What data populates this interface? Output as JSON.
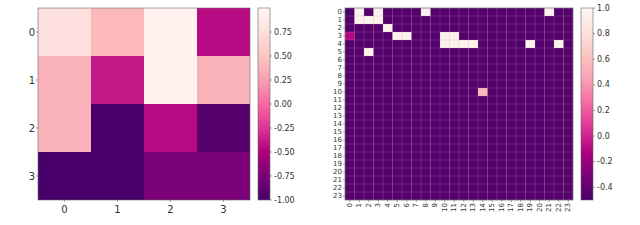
{
  "chart_data": [
    {
      "type": "heatmap",
      "x": [
        0,
        1,
        2,
        3
      ],
      "y": [
        0,
        1,
        2,
        3
      ],
      "values": [
        [
          0.75,
          0.42,
          0.95,
          -0.45
        ],
        [
          0.38,
          -0.38,
          0.95,
          0.38
        ],
        [
          0.38,
          -1.0,
          -0.45,
          -0.95
        ],
        [
          -1.0,
          -1.0,
          -0.75,
          -0.75
        ]
      ],
      "colorbar_lim": [
        -1.0,
        1.0
      ],
      "colorbar_ticks": [
        0.75,
        {
          "value": 0.5,
          "label": "0.50"
        },
        0.25,
        {
          "value": 0,
          "label": "0.00"
        },
        -0.25,
        {
          "value": -0.5,
          "label": "-0.50"
        },
        -0.75,
        {
          "value": -1,
          "label": "-1.00"
        }
      ],
      "grid": false
    },
    {
      "type": "heatmap",
      "x": [
        0,
        1,
        2,
        3,
        4,
        5,
        6,
        7,
        8,
        9,
        10,
        11,
        12,
        13,
        14,
        15,
        16,
        17,
        18,
        19,
        20,
        21,
        22,
        23
      ],
      "y": [
        0,
        1,
        2,
        3,
        4,
        5,
        6,
        7,
        8,
        9,
        10,
        11,
        12,
        13,
        14,
        15,
        16,
        17,
        18,
        19,
        20,
        21,
        22,
        23
      ],
      "values": [
        [
          -0.48,
          0.95,
          -0.45,
          0.95,
          -0.45,
          -0.45,
          -0.45,
          -0.45,
          0.95,
          -0.45,
          -0.45,
          -0.45,
          -0.45,
          -0.45,
          -0.45,
          -0.45,
          -0.45,
          -0.45,
          -0.45,
          -0.45,
          -0.45,
          0.95,
          -0.45,
          -0.45
        ],
        [
          -0.45,
          0.95,
          0.95,
          0.95,
          -0.45,
          -0.45,
          -0.45,
          -0.45,
          -0.45,
          -0.45,
          -0.45,
          -0.45,
          -0.45,
          -0.45,
          -0.45,
          -0.45,
          -0.45,
          -0.45,
          -0.45,
          -0.45,
          -0.45,
          -0.45,
          -0.45,
          -0.45
        ],
        [
          -0.45,
          -0.45,
          -0.45,
          -0.45,
          0.95,
          -0.45,
          -0.45,
          -0.45,
          -0.45,
          -0.45,
          -0.45,
          -0.45,
          -0.45,
          -0.45,
          -0.45,
          -0.45,
          -0.45,
          -0.45,
          -0.45,
          -0.45,
          -0.45,
          -0.45,
          -0.45,
          -0.45
        ],
        [
          -0.1,
          -0.45,
          -0.45,
          -0.45,
          -0.45,
          0.95,
          0.95,
          -0.45,
          -0.45,
          -0.45,
          0.95,
          0.95,
          -0.45,
          -0.45,
          -0.45,
          -0.45,
          -0.45,
          -0.45,
          -0.45,
          -0.45,
          -0.45,
          -0.45,
          -0.45,
          -0.45
        ],
        [
          -0.45,
          -0.45,
          -0.45,
          -0.45,
          -0.45,
          -0.45,
          -0.45,
          -0.45,
          -0.45,
          -0.45,
          0.95,
          0.95,
          0.95,
          0.95,
          -0.45,
          -0.45,
          -0.45,
          -0.45,
          -0.48,
          0.95,
          -0.45,
          -0.45,
          0.95,
          -0.45
        ],
        [
          -0.45,
          -0.45,
          0.95,
          -0.45,
          -0.45,
          -0.45,
          -0.45,
          -0.45,
          -0.45,
          -0.45,
          -0.45,
          -0.45,
          -0.45,
          -0.45,
          -0.45,
          -0.45,
          -0.45,
          -0.45,
          -0.45,
          -0.45,
          -0.45,
          -0.45,
          -0.45,
          -0.45
        ],
        [
          -0.45,
          -0.45,
          -0.45,
          -0.45,
          -0.45,
          -0.45,
          -0.45,
          -0.45,
          -0.45,
          -0.45,
          -0.45,
          -0.45,
          -0.45,
          -0.45,
          -0.45,
          -0.45,
          -0.45,
          -0.45,
          -0.45,
          -0.45,
          -0.45,
          -0.45,
          -0.45,
          -0.45
        ],
        [
          -0.45,
          -0.45,
          -0.45,
          -0.45,
          -0.45,
          -0.45,
          -0.45,
          -0.45,
          -0.45,
          -0.45,
          -0.45,
          -0.45,
          -0.45,
          -0.45,
          -0.45,
          -0.45,
          -0.45,
          -0.45,
          -0.45,
          -0.45,
          -0.45,
          -0.45,
          -0.45,
          -0.45
        ],
        [
          -0.45,
          -0.45,
          -0.45,
          -0.45,
          -0.45,
          -0.45,
          -0.45,
          -0.45,
          -0.45,
          -0.45,
          -0.45,
          -0.45,
          -0.45,
          -0.45,
          -0.45,
          -0.45,
          -0.45,
          -0.45,
          -0.45,
          -0.45,
          -0.45,
          -0.45,
          -0.45,
          -0.45
        ],
        [
          -0.45,
          -0.45,
          -0.45,
          -0.45,
          -0.45,
          -0.45,
          -0.45,
          -0.45,
          -0.45,
          -0.45,
          -0.45,
          -0.45,
          -0.45,
          -0.45,
          -0.45,
          -0.45,
          -0.45,
          -0.45,
          -0.45,
          -0.45,
          -0.45,
          -0.45,
          -0.45,
          -0.45
        ],
        [
          -0.45,
          -0.45,
          -0.45,
          -0.45,
          -0.45,
          -0.45,
          -0.45,
          -0.45,
          -0.45,
          -0.45,
          -0.45,
          -0.45,
          -0.45,
          -0.45,
          0.55,
          -0.45,
          -0.45,
          -0.45,
          -0.45,
          -0.45,
          -0.45,
          -0.45,
          -0.45,
          -0.45
        ],
        [
          -0.45,
          -0.45,
          -0.45,
          -0.45,
          -0.45,
          -0.45,
          -0.45,
          -0.45,
          -0.45,
          -0.45,
          -0.45,
          -0.45,
          -0.45,
          -0.45,
          -0.45,
          -0.45,
          -0.45,
          -0.45,
          -0.45,
          -0.45,
          -0.45,
          -0.45,
          -0.45,
          -0.45
        ],
        [
          -0.45,
          -0.45,
          -0.45,
          -0.45,
          -0.45,
          -0.45,
          -0.45,
          -0.45,
          -0.45,
          -0.45,
          -0.45,
          -0.45,
          -0.45,
          -0.45,
          -0.45,
          -0.45,
          -0.45,
          -0.45,
          -0.45,
          -0.45,
          -0.45,
          -0.45,
          -0.45,
          -0.45
        ],
        [
          -0.45,
          -0.45,
          -0.45,
          -0.45,
          -0.45,
          -0.45,
          -0.45,
          -0.45,
          -0.45,
          -0.45,
          -0.45,
          -0.45,
          -0.45,
          -0.45,
          -0.45,
          -0.45,
          -0.45,
          -0.45,
          -0.45,
          -0.45,
          -0.45,
          -0.45,
          -0.45,
          -0.45
        ],
        [
          -0.45,
          -0.45,
          -0.45,
          -0.45,
          -0.45,
          -0.45,
          -0.45,
          -0.45,
          -0.45,
          -0.45,
          -0.45,
          -0.45,
          -0.45,
          -0.45,
          -0.45,
          -0.45,
          -0.45,
          -0.45,
          -0.45,
          -0.45,
          -0.45,
          -0.45,
          -0.45,
          -0.45
        ],
        [
          -0.45,
          -0.45,
          -0.45,
          -0.45,
          -0.45,
          -0.45,
          -0.45,
          -0.45,
          -0.45,
          -0.45,
          -0.45,
          -0.45,
          -0.45,
          -0.45,
          -0.45,
          -0.45,
          -0.45,
          -0.45,
          -0.45,
          -0.45,
          -0.45,
          -0.45,
          -0.45,
          -0.45
        ],
        [
          -0.45,
          -0.45,
          -0.45,
          -0.45,
          -0.45,
          -0.45,
          -0.45,
          -0.45,
          -0.45,
          -0.45,
          -0.45,
          -0.45,
          -0.45,
          -0.45,
          -0.45,
          -0.45,
          -0.45,
          -0.45,
          -0.45,
          -0.45,
          -0.45,
          -0.45,
          -0.45,
          -0.45
        ],
        [
          -0.45,
          -0.45,
          -0.45,
          -0.45,
          -0.45,
          -0.45,
          -0.45,
          -0.45,
          -0.45,
          -0.45,
          -0.45,
          -0.45,
          -0.45,
          -0.45,
          -0.45,
          -0.45,
          -0.45,
          -0.45,
          -0.45,
          -0.45,
          -0.45,
          -0.45,
          -0.45,
          -0.45
        ],
        [
          -0.45,
          -0.45,
          -0.45,
          -0.45,
          -0.45,
          -0.45,
          -0.45,
          -0.45,
          -0.45,
          -0.45,
          -0.45,
          -0.45,
          -0.45,
          -0.45,
          -0.45,
          -0.45,
          -0.45,
          -0.45,
          -0.45,
          -0.45,
          -0.45,
          -0.45,
          -0.45,
          -0.45
        ],
        [
          -0.45,
          -0.45,
          -0.45,
          -0.45,
          -0.45,
          -0.45,
          -0.45,
          -0.45,
          -0.45,
          -0.45,
          -0.45,
          -0.45,
          -0.45,
          -0.45,
          -0.45,
          -0.45,
          -0.45,
          -0.45,
          -0.45,
          -0.45,
          -0.45,
          -0.45,
          -0.45,
          -0.45
        ],
        [
          -0.45,
          -0.45,
          -0.45,
          -0.45,
          -0.45,
          -0.45,
          -0.45,
          -0.45,
          -0.45,
          -0.45,
          -0.45,
          -0.45,
          -0.45,
          -0.45,
          -0.45,
          -0.45,
          -0.45,
          -0.45,
          -0.45,
          -0.45,
          -0.45,
          -0.45,
          -0.45,
          -0.45
        ],
        [
          -0.45,
          -0.45,
          -0.45,
          -0.45,
          -0.45,
          -0.45,
          -0.45,
          -0.45,
          -0.45,
          -0.45,
          -0.45,
          -0.45,
          -0.45,
          -0.45,
          -0.45,
          -0.45,
          -0.45,
          -0.45,
          -0.45,
          -0.45,
          -0.45,
          -0.45,
          -0.45,
          -0.45
        ],
        [
          -0.45,
          -0.45,
          -0.45,
          -0.45,
          -0.45,
          -0.45,
          -0.45,
          -0.45,
          -0.45,
          -0.45,
          -0.45,
          -0.45,
          -0.45,
          -0.45,
          -0.45,
          -0.45,
          -0.45,
          -0.45,
          -0.45,
          -0.45,
          -0.45,
          -0.45,
          -0.45,
          -0.45
        ],
        [
          -0.45,
          -0.45,
          -0.45,
          -0.45,
          -0.45,
          -0.45,
          -0.45,
          -0.45,
          -0.45,
          -0.45,
          -0.45,
          -0.45,
          -0.45,
          -0.45,
          -0.45,
          -0.45,
          -0.45,
          -0.45,
          -0.45,
          -0.45,
          -0.45,
          -0.45,
          -0.45,
          -0.45
        ]
      ],
      "colorbar_lim": [
        -0.5,
        1.0
      ],
      "colorbar_ticks": [
        {
          "value": 1,
          "label": "1.0"
        },
        0.8,
        0.6,
        0.4,
        0.2,
        {
          "value": 0,
          "label": "0.0"
        },
        -0.2,
        -0.4
      ],
      "grid": true
    }
  ]
}
